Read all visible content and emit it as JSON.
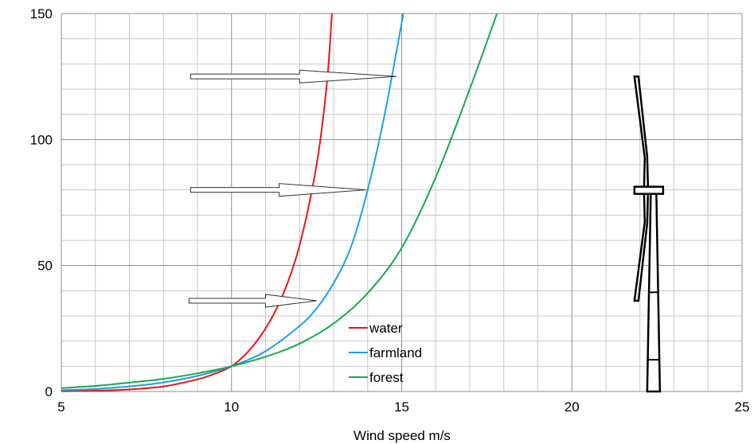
{
  "chart_data": {
    "type": "line",
    "title": "",
    "xlabel": "Wind speed m/s",
    "ylabel": "",
    "xlim": [
      5,
      25
    ],
    "ylim": [
      0,
      150
    ],
    "x_ticks": [
      5,
      10,
      15,
      20,
      25
    ],
    "y_ticks": [
      0,
      50,
      100,
      150
    ],
    "x_minor_step": 1,
    "y_minor_step": 10,
    "grid": true,
    "legend_position": "center-bottom",
    "series": [
      {
        "name": "water",
        "color": "#e8151b",
        "x": [
          5,
          6,
          7,
          8,
          9,
          9.5,
          10,
          10.5,
          11,
          11.5,
          12,
          12.5,
          12.8,
          12.95
        ],
        "y": [
          0.08,
          0.3,
          0.8,
          2.0,
          4.8,
          7.0,
          10,
          16,
          25,
          38,
          58,
          90,
          122,
          150
        ]
      },
      {
        "name": "farmland",
        "color": "#1ba1e2",
        "x": [
          5,
          6,
          7,
          8,
          9,
          10,
          11,
          12,
          12.5,
          13,
          13.5,
          14,
          14.5,
          15.05
        ],
        "y": [
          0.5,
          1.0,
          2.0,
          3.6,
          6.2,
          10,
          16,
          26,
          33,
          43,
          57,
          80,
          110,
          150
        ]
      },
      {
        "name": "forest",
        "color": "#19a84a",
        "x": [
          5,
          6,
          7,
          8,
          9,
          10,
          11,
          12,
          13,
          14,
          15,
          16,
          17,
          17.8
        ],
        "y": [
          1.3,
          2.2,
          3.5,
          5.0,
          7.2,
          10,
          13.8,
          19,
          27,
          39,
          57,
          85,
          120,
          150
        ]
      }
    ],
    "arrows": [
      {
        "y": 125,
        "x_start": 8.8,
        "x_end": 14.85,
        "head_at": 12.0
      },
      {
        "y": 80,
        "x_start": 8.8,
        "x_end": 13.95,
        "head_at": 11.4
      },
      {
        "y": 36,
        "x_start": 8.75,
        "x_end": 12.5,
        "head_at": 11.0
      }
    ],
    "turbine": {
      "tower_x": 22.4,
      "hub_height": 80,
      "blade_tip_top": 125,
      "blade_tip_bottom": 36
    }
  }
}
